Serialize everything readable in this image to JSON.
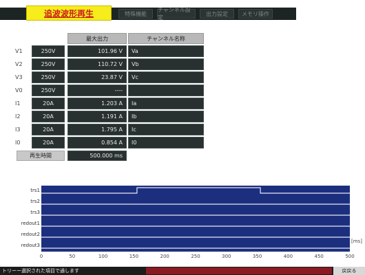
{
  "header": {
    "active_tab": "追波波形再生",
    "tabs": [
      "特殊機能",
      "チャンネル設定",
      "出力設定",
      "メモリ操作"
    ]
  },
  "table": {
    "col_max_output": "最大出力",
    "col_channel_name": "チャンネル名称",
    "rows": [
      {
        "label": "V1",
        "range": "250V",
        "value": "101.96 V",
        "name": "Va"
      },
      {
        "label": "V2",
        "range": "250V",
        "value": "110.72 V",
        "name": "Vb"
      },
      {
        "label": "V3",
        "range": "250V",
        "value": "23.87 V",
        "name": "Vc"
      },
      {
        "label": "V0",
        "range": "250V",
        "value": "----",
        "name": ""
      },
      {
        "label": "I1",
        "range": "20A",
        "value": "1.203 A",
        "name": "Ia"
      },
      {
        "label": "I2",
        "range": "20A",
        "value": "1.191 A",
        "name": "Ib"
      },
      {
        "label": "I3",
        "range": "20A",
        "value": "1.795 A",
        "name": "Ic"
      },
      {
        "label": "I0",
        "range": "20A",
        "value": "0.854 A",
        "name": "I0"
      }
    ],
    "repeat_label": "再生時間",
    "repeat_value": "500.000 ms"
  },
  "timing": {
    "signals": [
      "trs1",
      "trs2",
      "trs3",
      "redout1",
      "redout2",
      "redout3"
    ],
    "ticks": [
      "0",
      "50",
      "100",
      "150",
      "200",
      "250",
      "300",
      "350",
      "400",
      "450",
      "500"
    ],
    "unit": "[ms]",
    "trs1_high": [
      155,
      355
    ],
    "time_max": 500
  },
  "footer": {
    "status": "トリーー選択された項目で通します",
    "right_button": "戻戻る"
  }
}
